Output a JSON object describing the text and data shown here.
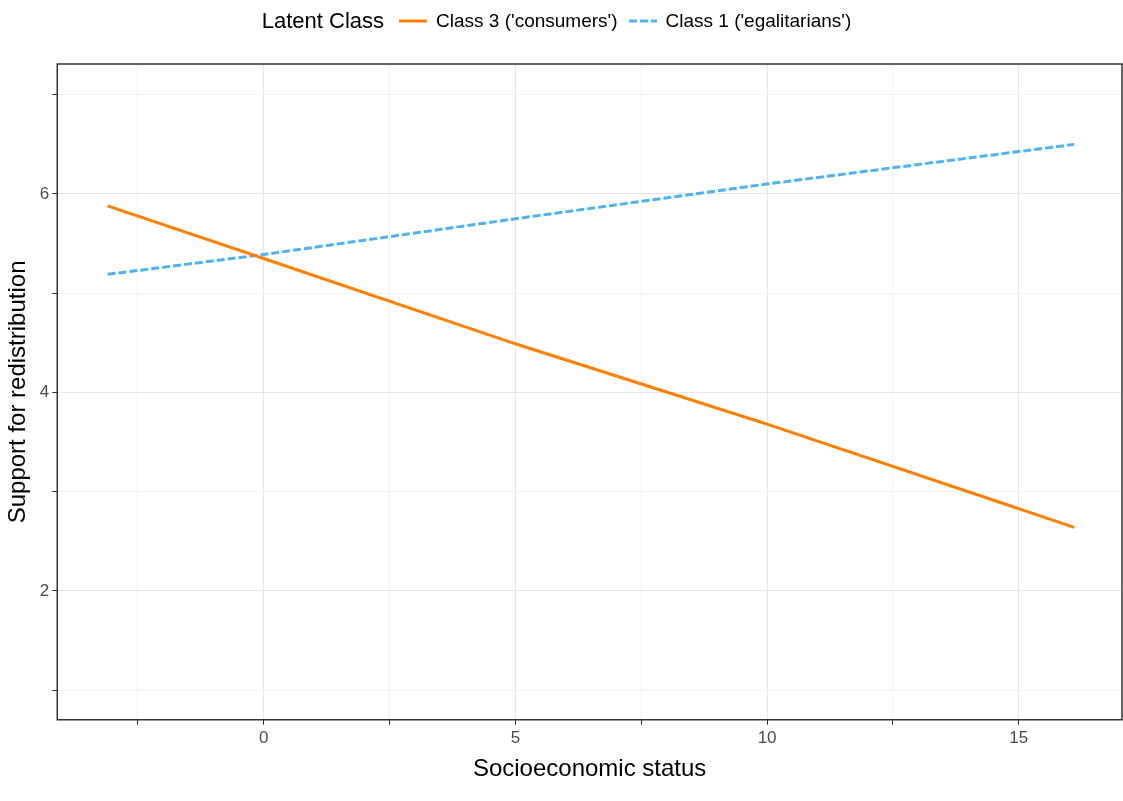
{
  "chart_data": {
    "type": "line",
    "xlabel": "Socioeconomic status",
    "ylabel": "Support for redistribution",
    "legend_title": "Latent Class",
    "legend": "top",
    "xlim": [
      -4.1,
      17.05
    ],
    "xticks": [
      {
        "value": -2.5,
        "label": null
      },
      0,
      {
        "value": 2.5,
        "label": null
      },
      5,
      {
        "value": 7.5,
        "label": null
      },
      10,
      {
        "value": 12.5,
        "label": null
      },
      15
    ],
    "ylim": [
      0.7,
      7.31
    ],
    "yticks": [
      {
        "value": 1,
        "label": null
      },
      2,
      {
        "value": 3,
        "label": null
      },
      4,
      {
        "value": 5,
        "label": null
      },
      6,
      {
        "value": 7,
        "label": null
      }
    ],
    "grid": true,
    "marker": "none",
    "series": [
      {
        "name": "Class 3 ('consumers')",
        "color": "#ff7f00",
        "line_style": "solid",
        "x": [
          -3.1,
          0,
          5,
          10,
          16.1
        ],
        "values": [
          5.88,
          5.35,
          4.49,
          3.68,
          2.64
        ]
      },
      {
        "name": "Class 1 ('egalitarians')",
        "color": "#4db3f5",
        "line_style": "dashed",
        "x": [
          -3.1,
          0,
          5,
          10,
          16.1
        ],
        "values": [
          5.19,
          5.39,
          5.75,
          6.1,
          6.5
        ]
      }
    ]
  }
}
